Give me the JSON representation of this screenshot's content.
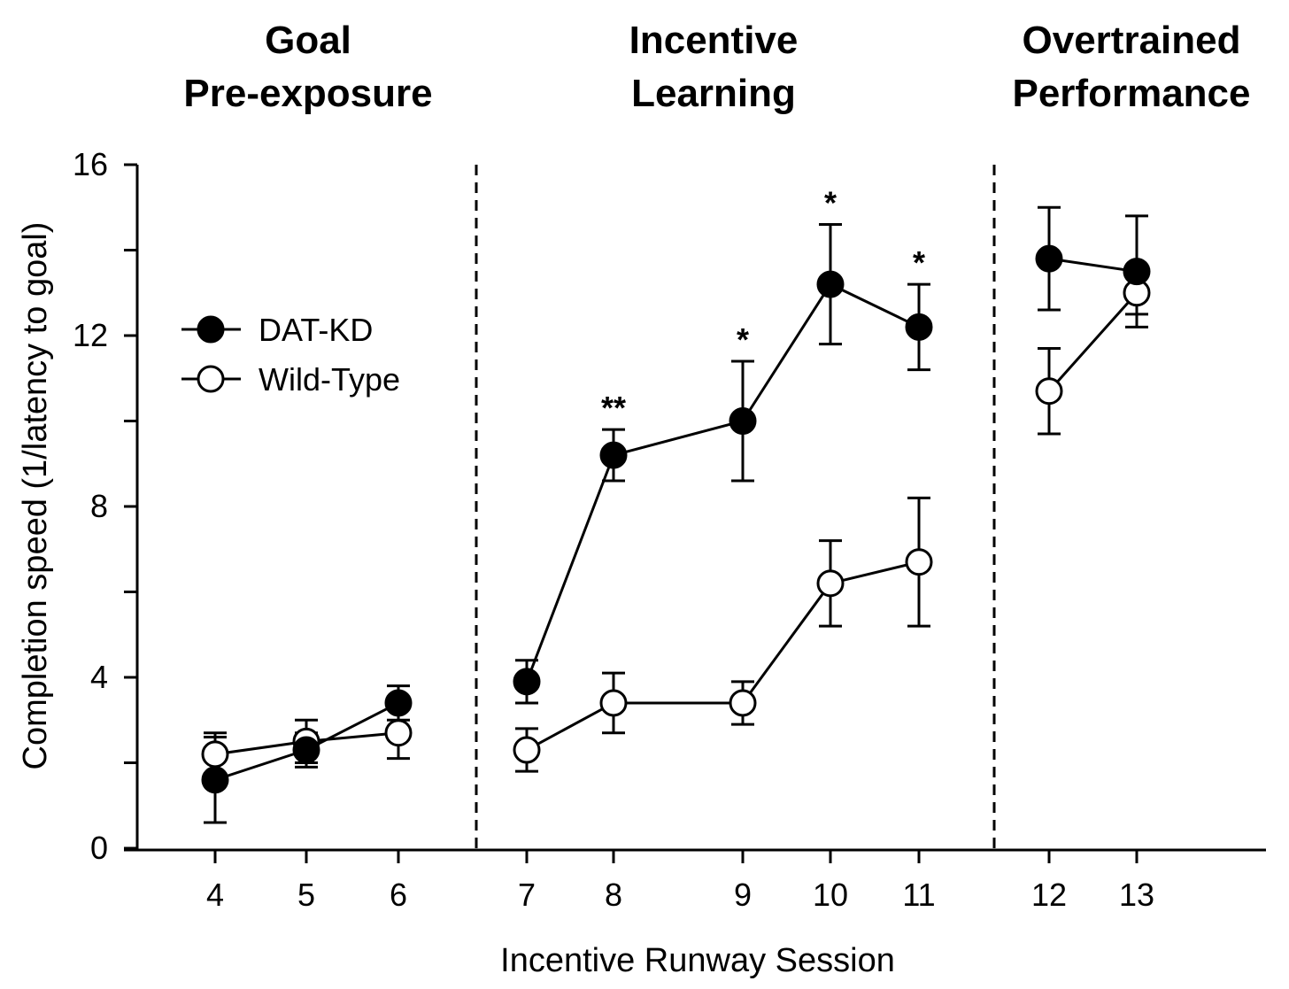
{
  "chart_data": {
    "type": "line",
    "xlabel": "Incentive Runway Session",
    "ylabel": "Completion speed (1/latency to goal)",
    "ylim": [
      0,
      16
    ],
    "yticks": [
      0,
      4,
      8,
      12,
      16
    ],
    "x": [
      4,
      5,
      6,
      7,
      8,
      9,
      10,
      11,
      12,
      13
    ],
    "x_tick_labels": [
      "4",
      "5",
      "6",
      "7",
      "8",
      "9",
      "10",
      "11",
      "12",
      "13"
    ],
    "phases": [
      {
        "label_lines": [
          "Goal",
          "Pre-exposure"
        ],
        "sessions": [
          4,
          5,
          6
        ]
      },
      {
        "label_lines": [
          "Incentive",
          "Learning"
        ],
        "sessions": [
          7,
          8,
          9,
          10,
          11
        ]
      },
      {
        "label_lines": [
          "Overtrained",
          "Performance"
        ],
        "sessions": [
          12,
          13
        ]
      }
    ],
    "series": [
      {
        "name": "DAT-KD",
        "marker": "filled-circle",
        "color": "#000000",
        "segments": [
          {
            "x": [
              4,
              5,
              6
            ],
            "y": [
              1.6,
              2.3,
              3.4
            ],
            "err": [
              1.0,
              0.4,
              0.4
            ]
          },
          {
            "x": [
              7,
              8,
              9,
              10,
              11
            ],
            "y": [
              3.9,
              9.2,
              10.0,
              13.2,
              12.2
            ],
            "err": [
              0.5,
              0.6,
              1.4,
              1.4,
              1.0
            ]
          },
          {
            "x": [
              12,
              13
            ],
            "y": [
              13.8,
              13.5
            ],
            "err": [
              1.2,
              1.3
            ]
          }
        ]
      },
      {
        "name": "Wild-Type",
        "marker": "open-circle",
        "color": "#000000",
        "segments": [
          {
            "x": [
              4,
              5,
              6
            ],
            "y": [
              2.2,
              2.5,
              2.7
            ],
            "err": [
              0.5,
              0.5,
              0.6
            ]
          },
          {
            "x": [
              7,
              8,
              9,
              10,
              11
            ],
            "y": [
              2.3,
              3.4,
              3.4,
              6.2,
              6.7
            ],
            "err": [
              0.5,
              0.7,
              0.5,
              1.0,
              1.5
            ]
          },
          {
            "x": [
              12,
              13
            ],
            "y": [
              10.7,
              13.0
            ],
            "err": [
              1.0,
              0.5
            ]
          }
        ]
      }
    ],
    "annotations": [
      {
        "x": 8,
        "text": "**"
      },
      {
        "x": 9,
        "text": "*"
      },
      {
        "x": 10,
        "text": "*"
      },
      {
        "x": 11,
        "text": "*"
      }
    ],
    "legend": {
      "position": "upper-left",
      "entries": [
        "DAT-KD",
        "Wild-Type"
      ]
    },
    "grid": false
  }
}
